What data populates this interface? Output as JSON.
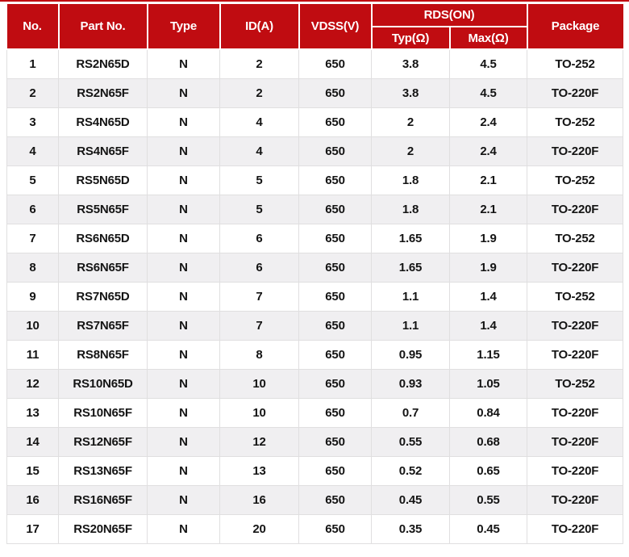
{
  "page": {
    "accent_red": "#c00c11",
    "row_alt_gray": "#f0eff1",
    "body_text_color": "#141414"
  },
  "table": {
    "headers": {
      "no": "No.",
      "part_no": "Part No.",
      "type": "Type",
      "id_a": "ID(A)",
      "vdss": "VDSS(V)",
      "rds_on": "RDS(ON)",
      "typ": "Typ(Ω)",
      "max": "Max(Ω)",
      "package": "Package"
    },
    "rows": [
      [
        "1",
        "RS2N65D",
        "N",
        "2",
        "650",
        "3.8",
        "4.5",
        "TO-252"
      ],
      [
        "2",
        "RS2N65F",
        "N",
        "2",
        "650",
        "3.8",
        "4.5",
        "TO-220F"
      ],
      [
        "3",
        "RS4N65D",
        "N",
        "4",
        "650",
        "2",
        "2.4",
        "TO-252"
      ],
      [
        "4",
        "RS4N65F",
        "N",
        "4",
        "650",
        "2",
        "2.4",
        "TO-220F"
      ],
      [
        "5",
        "RS5N65D",
        "N",
        "5",
        "650",
        "1.8",
        "2.1",
        "TO-252"
      ],
      [
        "6",
        "RS5N65F",
        "N",
        "5",
        "650",
        "1.8",
        "2.1",
        "TO-220F"
      ],
      [
        "7",
        "RS6N65D",
        "N",
        "6",
        "650",
        "1.65",
        "1.9",
        "TO-252"
      ],
      [
        "8",
        "RS6N65F",
        "N",
        "6",
        "650",
        "1.65",
        "1.9",
        "TO-220F"
      ],
      [
        "9",
        "RS7N65D",
        "N",
        "7",
        "650",
        "1.1",
        "1.4",
        "TO-252"
      ],
      [
        "10",
        "RS7N65F",
        "N",
        "7",
        "650",
        "1.1",
        "1.4",
        "TO-220F"
      ],
      [
        "11",
        "RS8N65F",
        "N",
        "8",
        "650",
        "0.95",
        "1.15",
        "TO-220F"
      ],
      [
        "12",
        "RS10N65D",
        "N",
        "10",
        "650",
        "0.93",
        "1.05",
        "TO-252"
      ],
      [
        "13",
        "RS10N65F",
        "N",
        "10",
        "650",
        "0.7",
        "0.84",
        "TO-220F"
      ],
      [
        "14",
        "RS12N65F",
        "N",
        "12",
        "650",
        "0.55",
        "0.68",
        "TO-220F"
      ],
      [
        "15",
        "RS13N65F",
        "N",
        "13",
        "650",
        "0.52",
        "0.65",
        "TO-220F"
      ],
      [
        "16",
        "RS16N65F",
        "N",
        "16",
        "650",
        "0.45",
        "0.55",
        "TO-220F"
      ],
      [
        "17",
        "RS20N65F",
        "N",
        "20",
        "650",
        "0.35",
        "0.45",
        "TO-220F"
      ]
    ]
  }
}
